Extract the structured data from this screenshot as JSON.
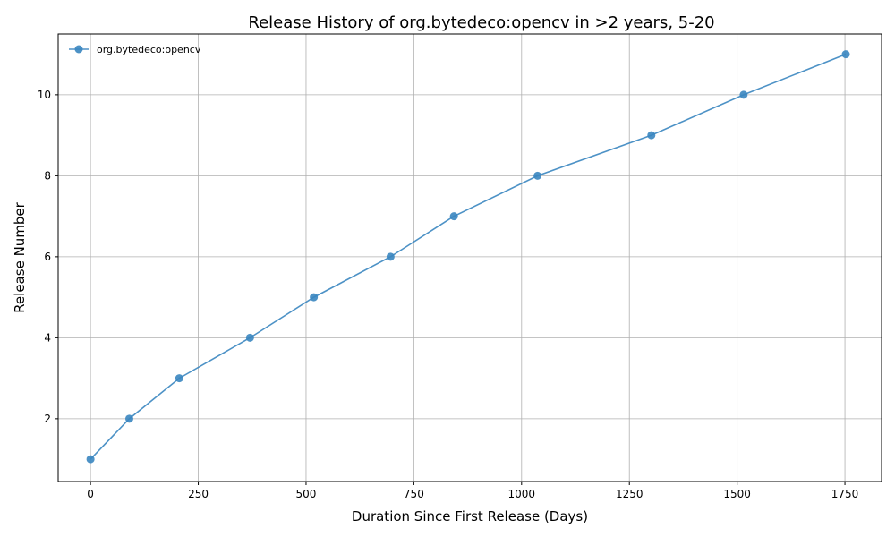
{
  "chart_data": {
    "type": "line",
    "title": "Release History of org.bytedeco:opencv in >2 years, 5-20",
    "xlabel": "Duration Since First Release (Days)",
    "ylabel": "Release Number",
    "xlim": [
      -75,
      1835
    ],
    "ylim": [
      0.45,
      11.5
    ],
    "xticks": [
      0,
      250,
      500,
      750,
      1000,
      1250,
      1500,
      1750
    ],
    "yticks": [
      2,
      4,
      6,
      8,
      10
    ],
    "grid": true,
    "legend_position": "top-left",
    "series": [
      {
        "name": "org.bytedeco:opencv",
        "color": "#3a86c0",
        "marker": "circle",
        "x": [
          0,
          90,
          206,
          370,
          518,
          696,
          843,
          1037,
          1301,
          1515,
          1752
        ],
        "y": [
          1,
          2,
          3,
          4,
          5,
          6,
          7,
          8,
          9,
          10,
          11
        ]
      }
    ]
  }
}
